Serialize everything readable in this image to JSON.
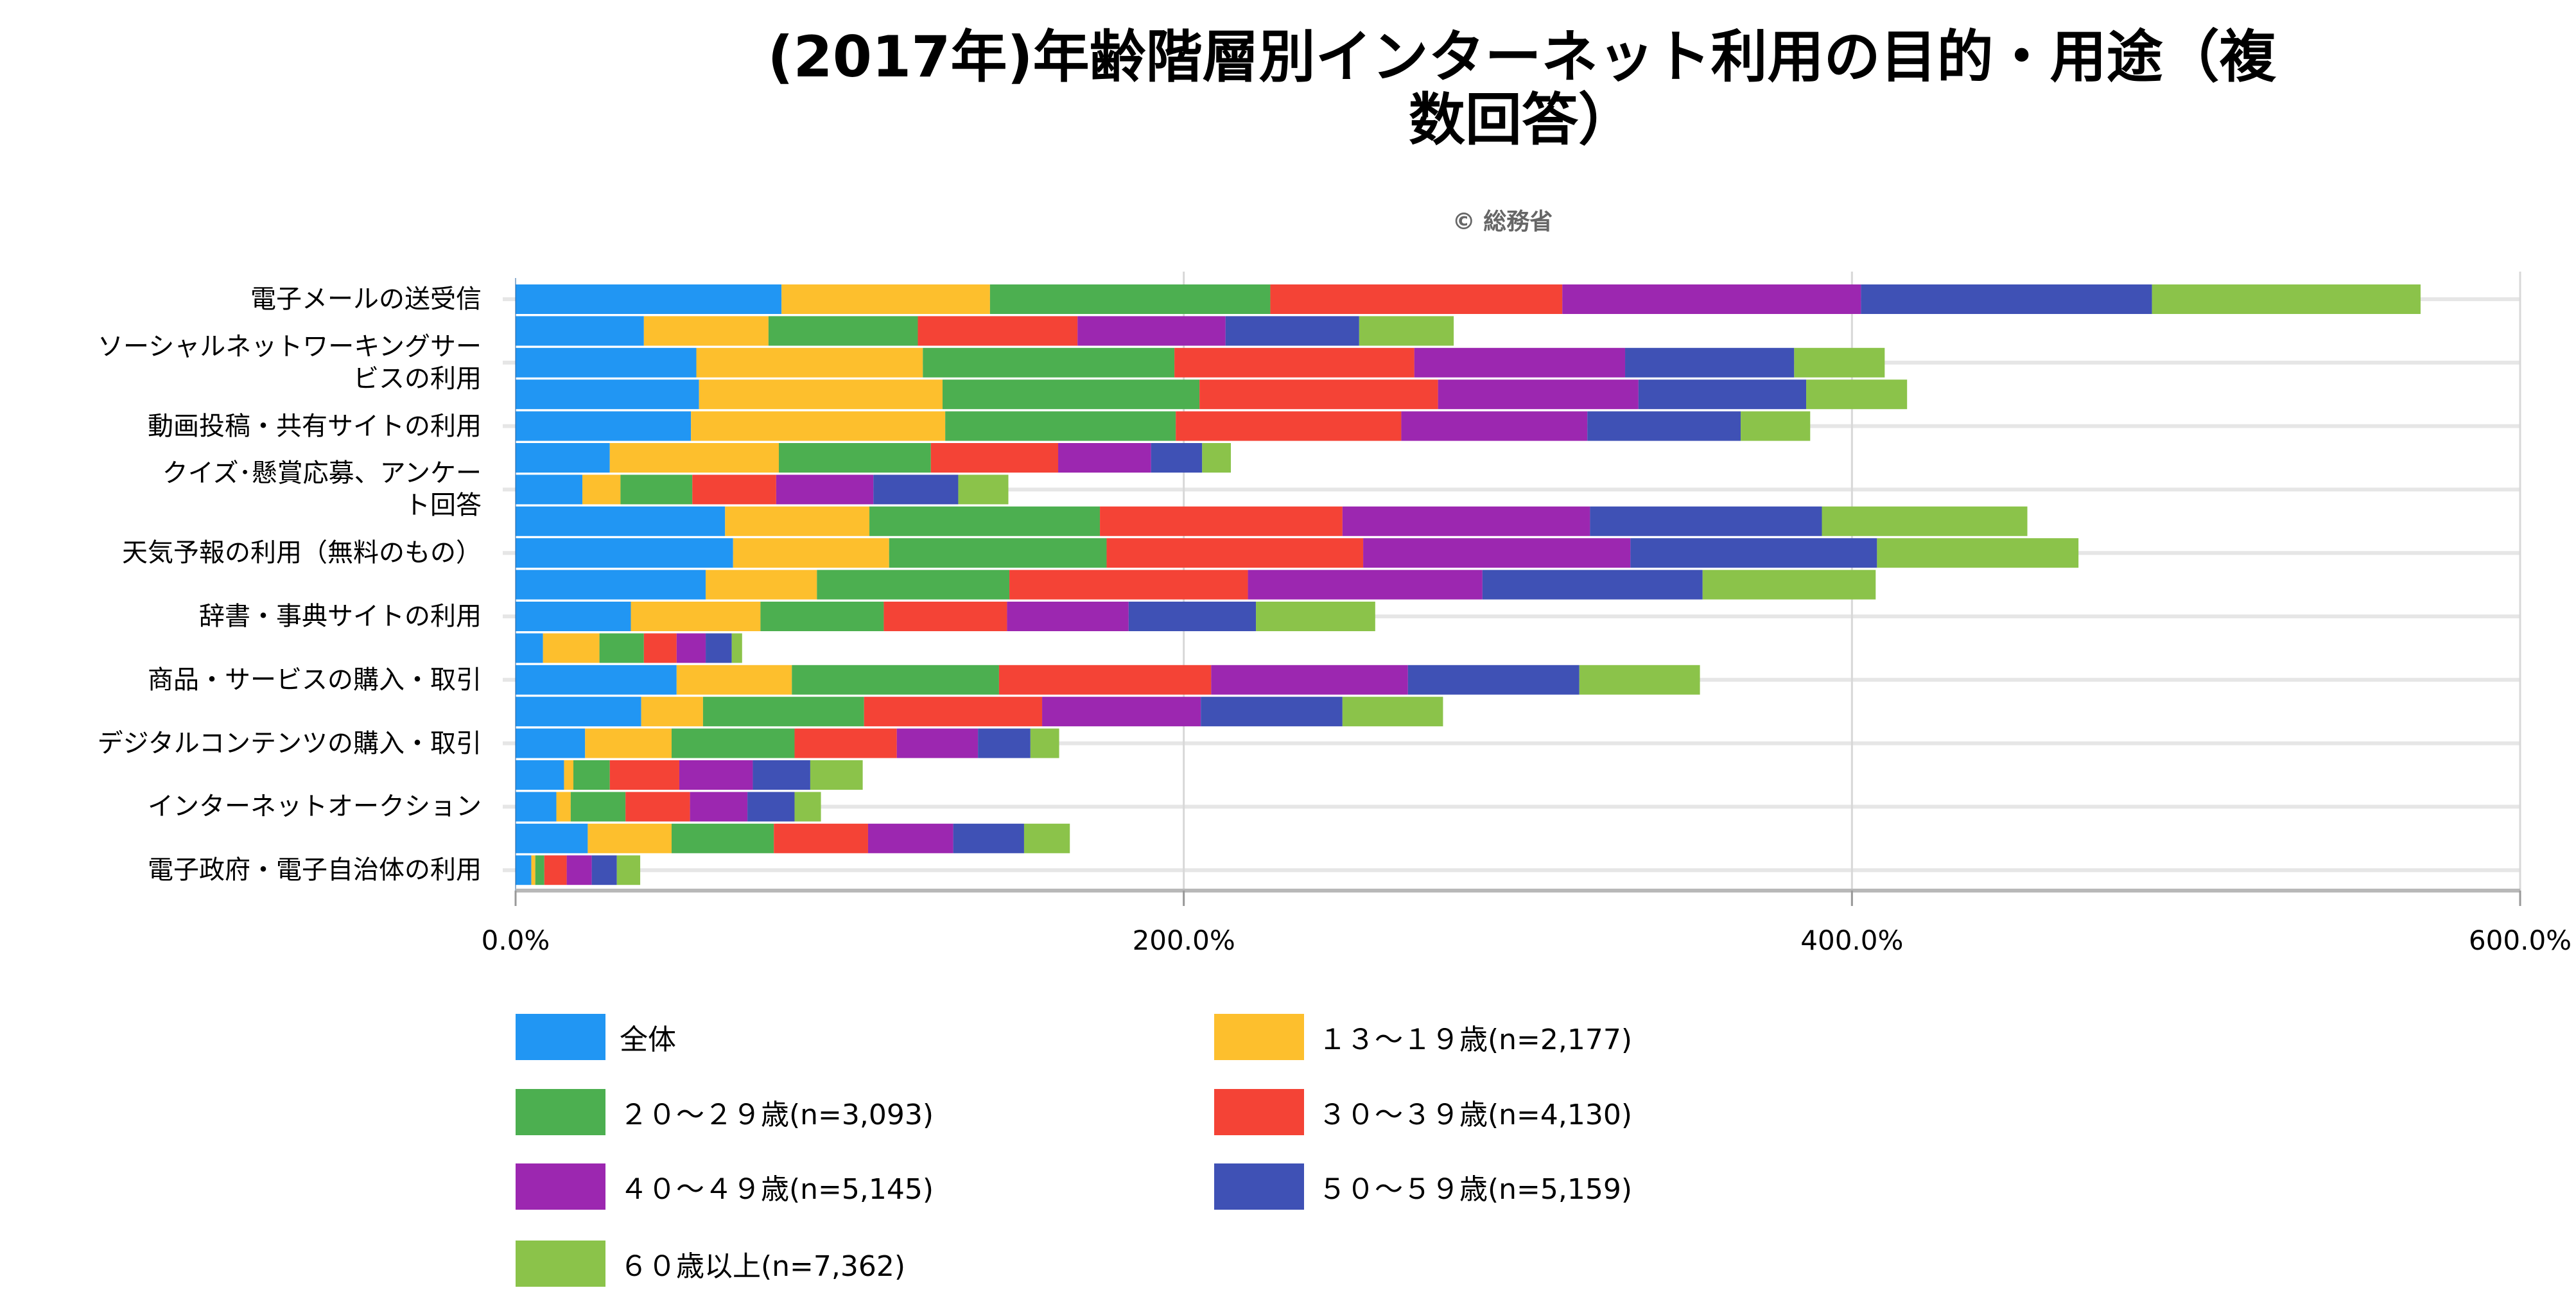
{
  "title_line1": "(2017年)年齢階層別インターネット利用の目的・用途（複",
  "title_line2": "数回答）",
  "credit": "© 総務省",
  "chart_data": {
    "type": "bar",
    "orientation": "horizontal",
    "stacked": true,
    "title": "(2017年)年齢階層別インターネット利用の目的・用途（複数回答）",
    "xlabel": "",
    "ylabel": "",
    "xlim": [
      0,
      600
    ],
    "tick_labels": [
      "0.0%",
      "200.0%",
      "400.0%",
      "600.0%"
    ],
    "tick_values": [
      0,
      200,
      400,
      600
    ],
    "grid": true,
    "legend_position": "bottom",
    "categories": [
      "電子メールの送受信",
      "",
      "ソーシャルネットワーキングサービスの利用",
      "",
      "動画投稿・共有サイトの利用",
      "",
      "クイズ･懸賞応募、アンケート回答",
      "",
      "天気予報の利用（無料のもの）",
      "",
      "辞書・事典サイトの利用",
      "",
      "商品・サービスの購入・取引",
      "",
      "デジタルコンテンツの購入・取引",
      "",
      "インターネットオークション",
      "",
      "電子政府・電子自治体の利用"
    ],
    "series": [
      {
        "name": "全体",
        "color": "#2196f3",
        "values": [
          79.6,
          38.4,
          54.1,
          54.9,
          52.5,
          28.2,
          20.0,
          62.7,
          65.1,
          56.9,
          34.5,
          8.2,
          48.2,
          37.6,
          20.8,
          14.5,
          12.2,
          21.6,
          4.7
        ]
      },
      {
        "name": "１３～１９歳(n=2,177)",
        "color": "#fdbf2d",
        "values": [
          62.4,
          37.3,
          67.8,
          72.9,
          76.1,
          50.6,
          11.4,
          43.2,
          46.7,
          33.3,
          38.8,
          16.9,
          34.5,
          18.5,
          25.9,
          2.8,
          4.3,
          25.1,
          1.2
        ]
      },
      {
        "name": "２０～２９歳(n=3,093)",
        "color": "#4caf50",
        "values": [
          83.9,
          44.7,
          75.3,
          76.9,
          69.0,
          45.5,
          21.5,
          69.0,
          65.1,
          57.6,
          36.9,
          13.3,
          62.0,
          48.2,
          36.8,
          10.9,
          16.4,
          30.6,
          2.7
        ]
      },
      {
        "name": "３０～３９歳(n=4,130)",
        "color": "#f44336",
        "values": [
          87.4,
          47.8,
          71.8,
          71.4,
          67.5,
          38.1,
          25.1,
          72.6,
          76.8,
          71.4,
          36.9,
          9.8,
          63.5,
          53.3,
          30.6,
          20.8,
          19.3,
          28.2,
          6.7
        ]
      },
      {
        "name": "４０～４９歳(n=5,145)",
        "color": "#9c27b0",
        "values": [
          89.4,
          44.3,
          63.1,
          60.0,
          55.7,
          27.8,
          29.1,
          74.1,
          80.0,
          70.2,
          36.4,
          8.7,
          58.9,
          47.5,
          24.3,
          22.0,
          17.2,
          25.5,
          7.5
        ]
      },
      {
        "name": "５０～５９歳(n=5,159)",
        "color": "#3f51b5",
        "values": [
          87.1,
          40.0,
          50.6,
          50.2,
          45.9,
          15.3,
          25.4,
          69.4,
          73.8,
          65.9,
          38.1,
          7.8,
          51.3,
          42.4,
          15.7,
          17.2,
          14.1,
          21.2,
          7.5
        ]
      },
      {
        "name": "６０歳以上(n=7,362)",
        "color": "#8bc34a",
        "values": [
          80.4,
          28.3,
          27.1,
          30.2,
          20.8,
          8.6,
          15.0,
          61.5,
          60.3,
          51.8,
          35.7,
          3.1,
          36.1,
          30.1,
          8.6,
          15.7,
          7.9,
          13.7,
          7.0
        ]
      }
    ]
  }
}
